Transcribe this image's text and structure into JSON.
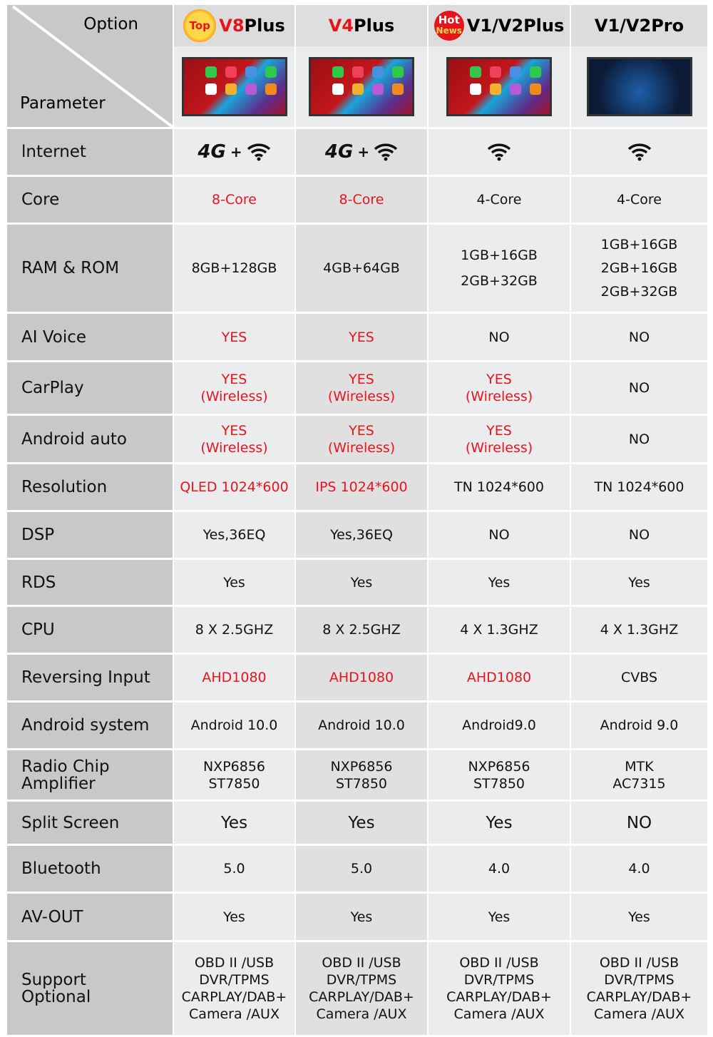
{
  "header": {
    "corner_top": "Option",
    "corner_bottom": "Parameter",
    "products": [
      {
        "name_prefix": "V8",
        "name_suffix": "Plus",
        "prefix_red": false,
        "badge": "Top",
        "badge_type": "top"
      },
      {
        "name_prefix": "V4",
        "name_suffix": "Plus",
        "prefix_red": true,
        "badge": "",
        "badge_type": ""
      },
      {
        "name_prefix": "V1/V2",
        "name_suffix": "Plus",
        "prefix_red": false,
        "badge": "Hot",
        "badge2": "News",
        "badge_type": "hot"
      },
      {
        "name_prefix": "V1/V2",
        "name_suffix": "Pro",
        "prefix_red": false,
        "badge": "",
        "badge_type": ""
      }
    ]
  },
  "internet": {
    "label": "lnternet",
    "cells": [
      [
        "4G-icon",
        "wifi-icon"
      ],
      [
        "4G-icon",
        "wifi-icon"
      ],
      [
        "wifi-icon"
      ],
      [
        "wifi-icon"
      ]
    ],
    "plus": "+",
    "fourg": "4G"
  },
  "rows": [
    {
      "label": [
        "Core"
      ],
      "h": 64,
      "cells": [
        {
          "t": [
            "8-Core"
          ],
          "red": true
        },
        {
          "t": [
            "8-Core"
          ],
          "red": true
        },
        {
          "t": [
            "4-Core"
          ]
        },
        {
          "t": [
            "4-Core"
          ]
        }
      ]
    },
    {
      "label": [
        "RAM & ROM"
      ],
      "h": 122,
      "cells": [
        {
          "t": [
            "8GB+128GB"
          ]
        },
        {
          "t": [
            "4GB+64GB"
          ]
        },
        {
          "t": [
            "1GB+16GB",
            "2GB+32GB"
          ]
        },
        {
          "t": [
            "1GB+16GB",
            "2GB+16GB",
            "2GB+32GB"
          ]
        }
      ]
    },
    {
      "label": [
        "AI Voice"
      ],
      "h": 65,
      "cells": [
        {
          "t": [
            "YES"
          ],
          "red": true
        },
        {
          "t": [
            "YES"
          ],
          "red": true
        },
        {
          "t": [
            "NO"
          ]
        },
        {
          "t": [
            "NO"
          ]
        }
      ]
    },
    {
      "label": [
        "CarPlay"
      ],
      "h": 72,
      "cells": [
        {
          "t": [
            "YES",
            "(Wireless)"
          ],
          "red": true
        },
        {
          "t": [
            "YES",
            "(Wireless)"
          ],
          "red": true
        },
        {
          "t": [
            "YES",
            "(Wireless)"
          ],
          "red": true
        },
        {
          "t": [
            "NO"
          ]
        }
      ]
    },
    {
      "label": [
        "Android auto"
      ],
      "h": 65,
      "cells": [
        {
          "t": [
            "YES",
            "(Wireless)"
          ],
          "red": true
        },
        {
          "t": [
            "YES",
            "(Wireless)"
          ],
          "red": true
        },
        {
          "t": [
            "YES",
            "(Wireless)"
          ],
          "red": true
        },
        {
          "t": [
            "NO"
          ]
        }
      ]
    },
    {
      "label": [
        "Resolution"
      ],
      "h": 64,
      "cells": [
        {
          "t": [
            "QLED 1024*600"
          ],
          "red": true
        },
        {
          "t": [
            "IPS 1024*600"
          ],
          "red": true
        },
        {
          "t": [
            "TN 1024*600"
          ]
        },
        {
          "t": [
            "TN 1024*600"
          ]
        }
      ]
    },
    {
      "label": [
        "DSP"
      ],
      "h": 64,
      "cells": [
        {
          "t": [
            "Yes,36EQ"
          ]
        },
        {
          "t": [
            "Yes,36EQ"
          ]
        },
        {
          "t": [
            "NO"
          ]
        },
        {
          "t": [
            "NO"
          ]
        }
      ]
    },
    {
      "label": [
        "RDS"
      ],
      "h": 63,
      "cells": [
        {
          "t": [
            "Yes"
          ]
        },
        {
          "t": [
            "Yes"
          ]
        },
        {
          "t": [
            "Yes"
          ]
        },
        {
          "t": [
            "Yes"
          ]
        }
      ]
    },
    {
      "label": [
        "CPU"
      ],
      "h": 64,
      "cells": [
        {
          "t": [
            "8 X 2.5GHZ"
          ]
        },
        {
          "t": [
            "8 X 2.5GHZ"
          ]
        },
        {
          "t": [
            "4 X 1.3GHZ"
          ]
        },
        {
          "t": [
            "4 X 1.3GHZ"
          ]
        }
      ]
    },
    {
      "label": [
        "Reversing Input"
      ],
      "h": 64,
      "cells": [
        {
          "t": [
            "AHD1080"
          ],
          "red": true
        },
        {
          "t": [
            "AHD1080"
          ],
          "red": true
        },
        {
          "t": [
            "AHD1080"
          ],
          "red": true
        },
        {
          "t": [
            "CVBS"
          ]
        }
      ]
    },
    {
      "label": [
        "Android system"
      ],
      "h": 64,
      "cells": [
        {
          "t": [
            "Android 10.0"
          ]
        },
        {
          "t": [
            "Android 10.0"
          ]
        },
        {
          "t": [
            "Android9.0"
          ]
        },
        {
          "t": [
            "Android 9.0"
          ]
        }
      ]
    },
    {
      "label": [
        "Radio Chip",
        "Amplifier"
      ],
      "h": 69,
      "cells": [
        {
          "t": [
            "NXP6856",
            "ST7850"
          ]
        },
        {
          "t": [
            "NXP6856",
            "ST7850"
          ]
        },
        {
          "t": [
            "NXP6856",
            "ST7850"
          ]
        },
        {
          "t": [
            "MTK",
            "AC7315"
          ]
        }
      ]
    },
    {
      "label": [
        "Split Screen"
      ],
      "h": 59,
      "big": true,
      "cells": [
        {
          "t": [
            "Yes"
          ]
        },
        {
          "t": [
            "Yes"
          ]
        },
        {
          "t": [
            "Yes"
          ]
        },
        {
          "t": [
            "NO"
          ]
        }
      ]
    },
    {
      "label": [
        "Bluetooth"
      ],
      "h": 64,
      "cells": [
        {
          "t": [
            "5.0"
          ]
        },
        {
          "t": [
            "5.0"
          ]
        },
        {
          "t": [
            "4.0"
          ]
        },
        {
          "t": [
            "4.0"
          ]
        }
      ]
    },
    {
      "label": [
        "AV-OUT"
      ],
      "h": 65,
      "cells": [
        {
          "t": [
            "Yes"
          ]
        },
        {
          "t": [
            "Yes"
          ]
        },
        {
          "t": [
            "Yes"
          ]
        },
        {
          "t": [
            "Yes"
          ]
        }
      ]
    },
    {
      "label": [
        "Support",
        "Optional"
      ],
      "h": 130,
      "cells": [
        {
          "t": [
            "OBD II /USB",
            "DVR/TPMS",
            "CARPLAY/DAB+",
            "Camera /AUX"
          ]
        },
        {
          "t": [
            "OBD II /USB",
            "DVR/TPMS",
            "CARPLAY/DAB+",
            "Camera /AUX"
          ]
        },
        {
          "t": [
            "OBD II /USB",
            "DVR/TPMS",
            "CARPLAY/DAB+",
            "Camera /AUX"
          ]
        },
        {
          "t": [
            "OBD II /USB",
            "DVR/TPMS",
            "CARPLAY/DAB+",
            "Camera /AUX"
          ]
        }
      ]
    }
  ],
  "colors": {
    "highlight": "#e8141c",
    "label_bg": "#c8c8c8",
    "cell_bg": "#ebecee"
  }
}
